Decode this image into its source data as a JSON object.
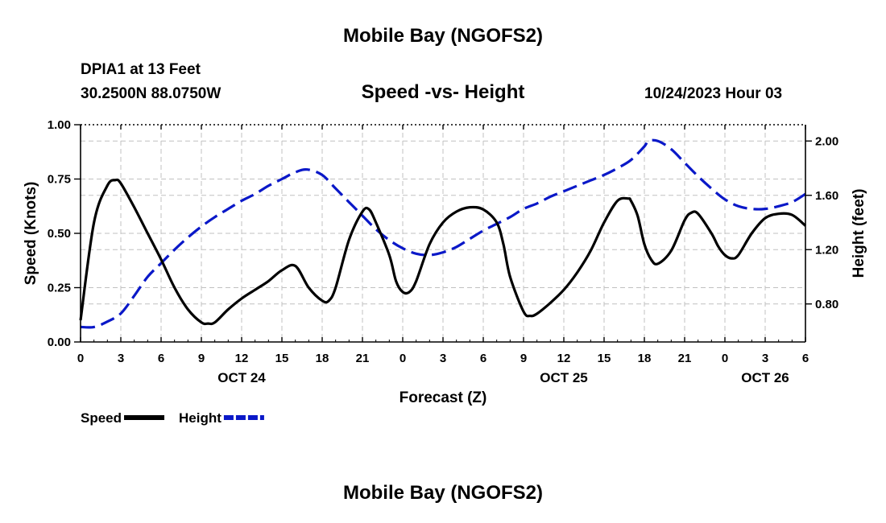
{
  "header": {
    "title": "Mobile Bay (NGOFS2)",
    "station": "DPIA1 at 13 Feet",
    "coords": "30.2500N  88.0750W",
    "subtitle": "Speed -vs- Height",
    "datetime": "10/24/2023 Hour 03"
  },
  "footer": {
    "title": "Mobile Bay (NGOFS2)"
  },
  "chart_data": {
    "type": "line",
    "xlabel": "Forecast (Z)",
    "x_range_hours": [
      0,
      54
    ],
    "x_tick_hours": [
      0,
      3,
      6,
      9,
      12,
      15,
      18,
      21,
      24,
      27,
      30,
      33,
      36,
      39,
      42,
      45,
      48,
      51,
      54
    ],
    "x_tick_labels": [
      "0",
      "3",
      "6",
      "9",
      "12",
      "15",
      "18",
      "21",
      "0",
      "3",
      "6",
      "9",
      "12",
      "15",
      "18",
      "21",
      "0",
      "3",
      "6"
    ],
    "date_labels": [
      {
        "hour": 12,
        "label": "OCT 24"
      },
      {
        "hour": 36,
        "label": "OCT 25"
      },
      {
        "hour": 51,
        "label": "OCT 26"
      }
    ],
    "left_axis": {
      "label": "Speed (Knots)",
      "range": [
        0,
        1
      ],
      "ticks": [
        0,
        0.25,
        0.5,
        0.75,
        1.0
      ],
      "tick_labels": [
        "0.00",
        "0.25",
        "0.50",
        "0.75",
        "1.00"
      ]
    },
    "right_axis": {
      "label": "Height (feet)",
      "range": [
        0.52,
        2.12
      ],
      "ticks": [
        0.8,
        1.2,
        1.6,
        2.0
      ],
      "tick_labels": [
        "0.80",
        "1.20",
        "1.60",
        "2.00"
      ]
    },
    "series": [
      {
        "name": "Speed",
        "axis": "left",
        "color": "#000000",
        "dash": "solid",
        "points": [
          [
            0,
            0.1
          ],
          [
            1,
            0.55
          ],
          [
            2,
            0.72
          ],
          [
            2.6,
            0.745
          ],
          [
            3,
            0.73
          ],
          [
            4,
            0.62
          ],
          [
            5,
            0.5
          ],
          [
            6,
            0.38
          ],
          [
            7,
            0.25
          ],
          [
            8,
            0.15
          ],
          [
            9,
            0.09
          ],
          [
            9.5,
            0.085
          ],
          [
            10,
            0.09
          ],
          [
            11,
            0.15
          ],
          [
            12,
            0.2
          ],
          [
            13,
            0.24
          ],
          [
            14,
            0.28
          ],
          [
            15,
            0.33
          ],
          [
            16,
            0.35
          ],
          [
            17,
            0.25
          ],
          [
            18,
            0.19
          ],
          [
            18.5,
            0.19
          ],
          [
            19,
            0.25
          ],
          [
            20,
            0.47
          ],
          [
            21,
            0.6
          ],
          [
            21.5,
            0.61
          ],
          [
            22,
            0.55
          ],
          [
            23,
            0.4
          ],
          [
            23.5,
            0.28
          ],
          [
            24,
            0.23
          ],
          [
            24.5,
            0.23
          ],
          [
            25,
            0.28
          ],
          [
            26,
            0.45
          ],
          [
            27,
            0.55
          ],
          [
            28,
            0.6
          ],
          [
            29,
            0.62
          ],
          [
            30,
            0.61
          ],
          [
            31,
            0.55
          ],
          [
            31.5,
            0.45
          ],
          [
            32,
            0.3
          ],
          [
            33,
            0.14
          ],
          [
            33.5,
            0.12
          ],
          [
            34,
            0.13
          ],
          [
            35,
            0.18
          ],
          [
            36,
            0.24
          ],
          [
            37,
            0.32
          ],
          [
            38,
            0.42
          ],
          [
            39,
            0.55
          ],
          [
            40,
            0.65
          ],
          [
            40.8,
            0.66
          ],
          [
            41,
            0.65
          ],
          [
            41.5,
            0.58
          ],
          [
            42,
            0.45
          ],
          [
            42.5,
            0.38
          ],
          [
            43,
            0.36
          ],
          [
            44,
            0.42
          ],
          [
            45,
            0.56
          ],
          [
            45.5,
            0.595
          ],
          [
            46,
            0.59
          ],
          [
            47,
            0.5
          ],
          [
            47.5,
            0.44
          ],
          [
            48,
            0.4
          ],
          [
            48.5,
            0.385
          ],
          [
            49,
            0.4
          ],
          [
            50,
            0.5
          ],
          [
            51,
            0.57
          ],
          [
            52,
            0.59
          ],
          [
            53,
            0.585
          ],
          [
            54,
            0.535
          ]
        ]
      },
      {
        "name": "Height",
        "axis": "right",
        "color": "#0a18c8",
        "dash": "dashed",
        "points": [
          [
            0,
            0.63
          ],
          [
            1,
            0.63
          ],
          [
            2,
            0.67
          ],
          [
            3,
            0.73
          ],
          [
            4,
            0.86
          ],
          [
            5,
            1.0
          ],
          [
            6,
            1.1
          ],
          [
            7,
            1.2
          ],
          [
            8,
            1.29
          ],
          [
            9,
            1.37
          ],
          [
            10,
            1.44
          ],
          [
            11,
            1.5
          ],
          [
            12,
            1.56
          ],
          [
            13,
            1.61
          ],
          [
            14,
            1.67
          ],
          [
            15,
            1.72
          ],
          [
            16,
            1.77
          ],
          [
            16.9,
            1.79
          ],
          [
            18,
            1.75
          ],
          [
            19,
            1.65
          ],
          [
            20,
            1.55
          ],
          [
            21,
            1.45
          ],
          [
            22,
            1.35
          ],
          [
            23,
            1.27
          ],
          [
            24,
            1.21
          ],
          [
            25,
            1.17
          ],
          [
            26,
            1.16
          ],
          [
            27,
            1.18
          ],
          [
            28,
            1.22
          ],
          [
            29,
            1.28
          ],
          [
            30,
            1.34
          ],
          [
            31,
            1.39
          ],
          [
            32,
            1.44
          ],
          [
            33,
            1.5
          ],
          [
            34,
            1.54
          ],
          [
            35,
            1.59
          ],
          [
            36,
            1.63
          ],
          [
            37,
            1.67
          ],
          [
            38,
            1.71
          ],
          [
            39,
            1.75
          ],
          [
            40,
            1.8
          ],
          [
            41,
            1.86
          ],
          [
            42,
            1.96
          ],
          [
            42.3,
            2.0
          ],
          [
            43,
            2.0
          ],
          [
            44,
            1.94
          ],
          [
            45,
            1.84
          ],
          [
            46,
            1.74
          ],
          [
            47,
            1.65
          ],
          [
            48,
            1.57
          ],
          [
            49,
            1.52
          ],
          [
            50,
            1.5
          ],
          [
            51,
            1.5
          ],
          [
            52,
            1.52
          ],
          [
            53,
            1.55
          ],
          [
            54,
            1.61
          ]
        ]
      }
    ],
    "legend": {
      "position": "bottom-left",
      "entries": [
        {
          "label": "Speed",
          "color": "#000000",
          "dash": "solid"
        },
        {
          "label": "Height",
          "color": "#0a18c8",
          "dash": "dashed"
        }
      ]
    },
    "grid": true
  }
}
